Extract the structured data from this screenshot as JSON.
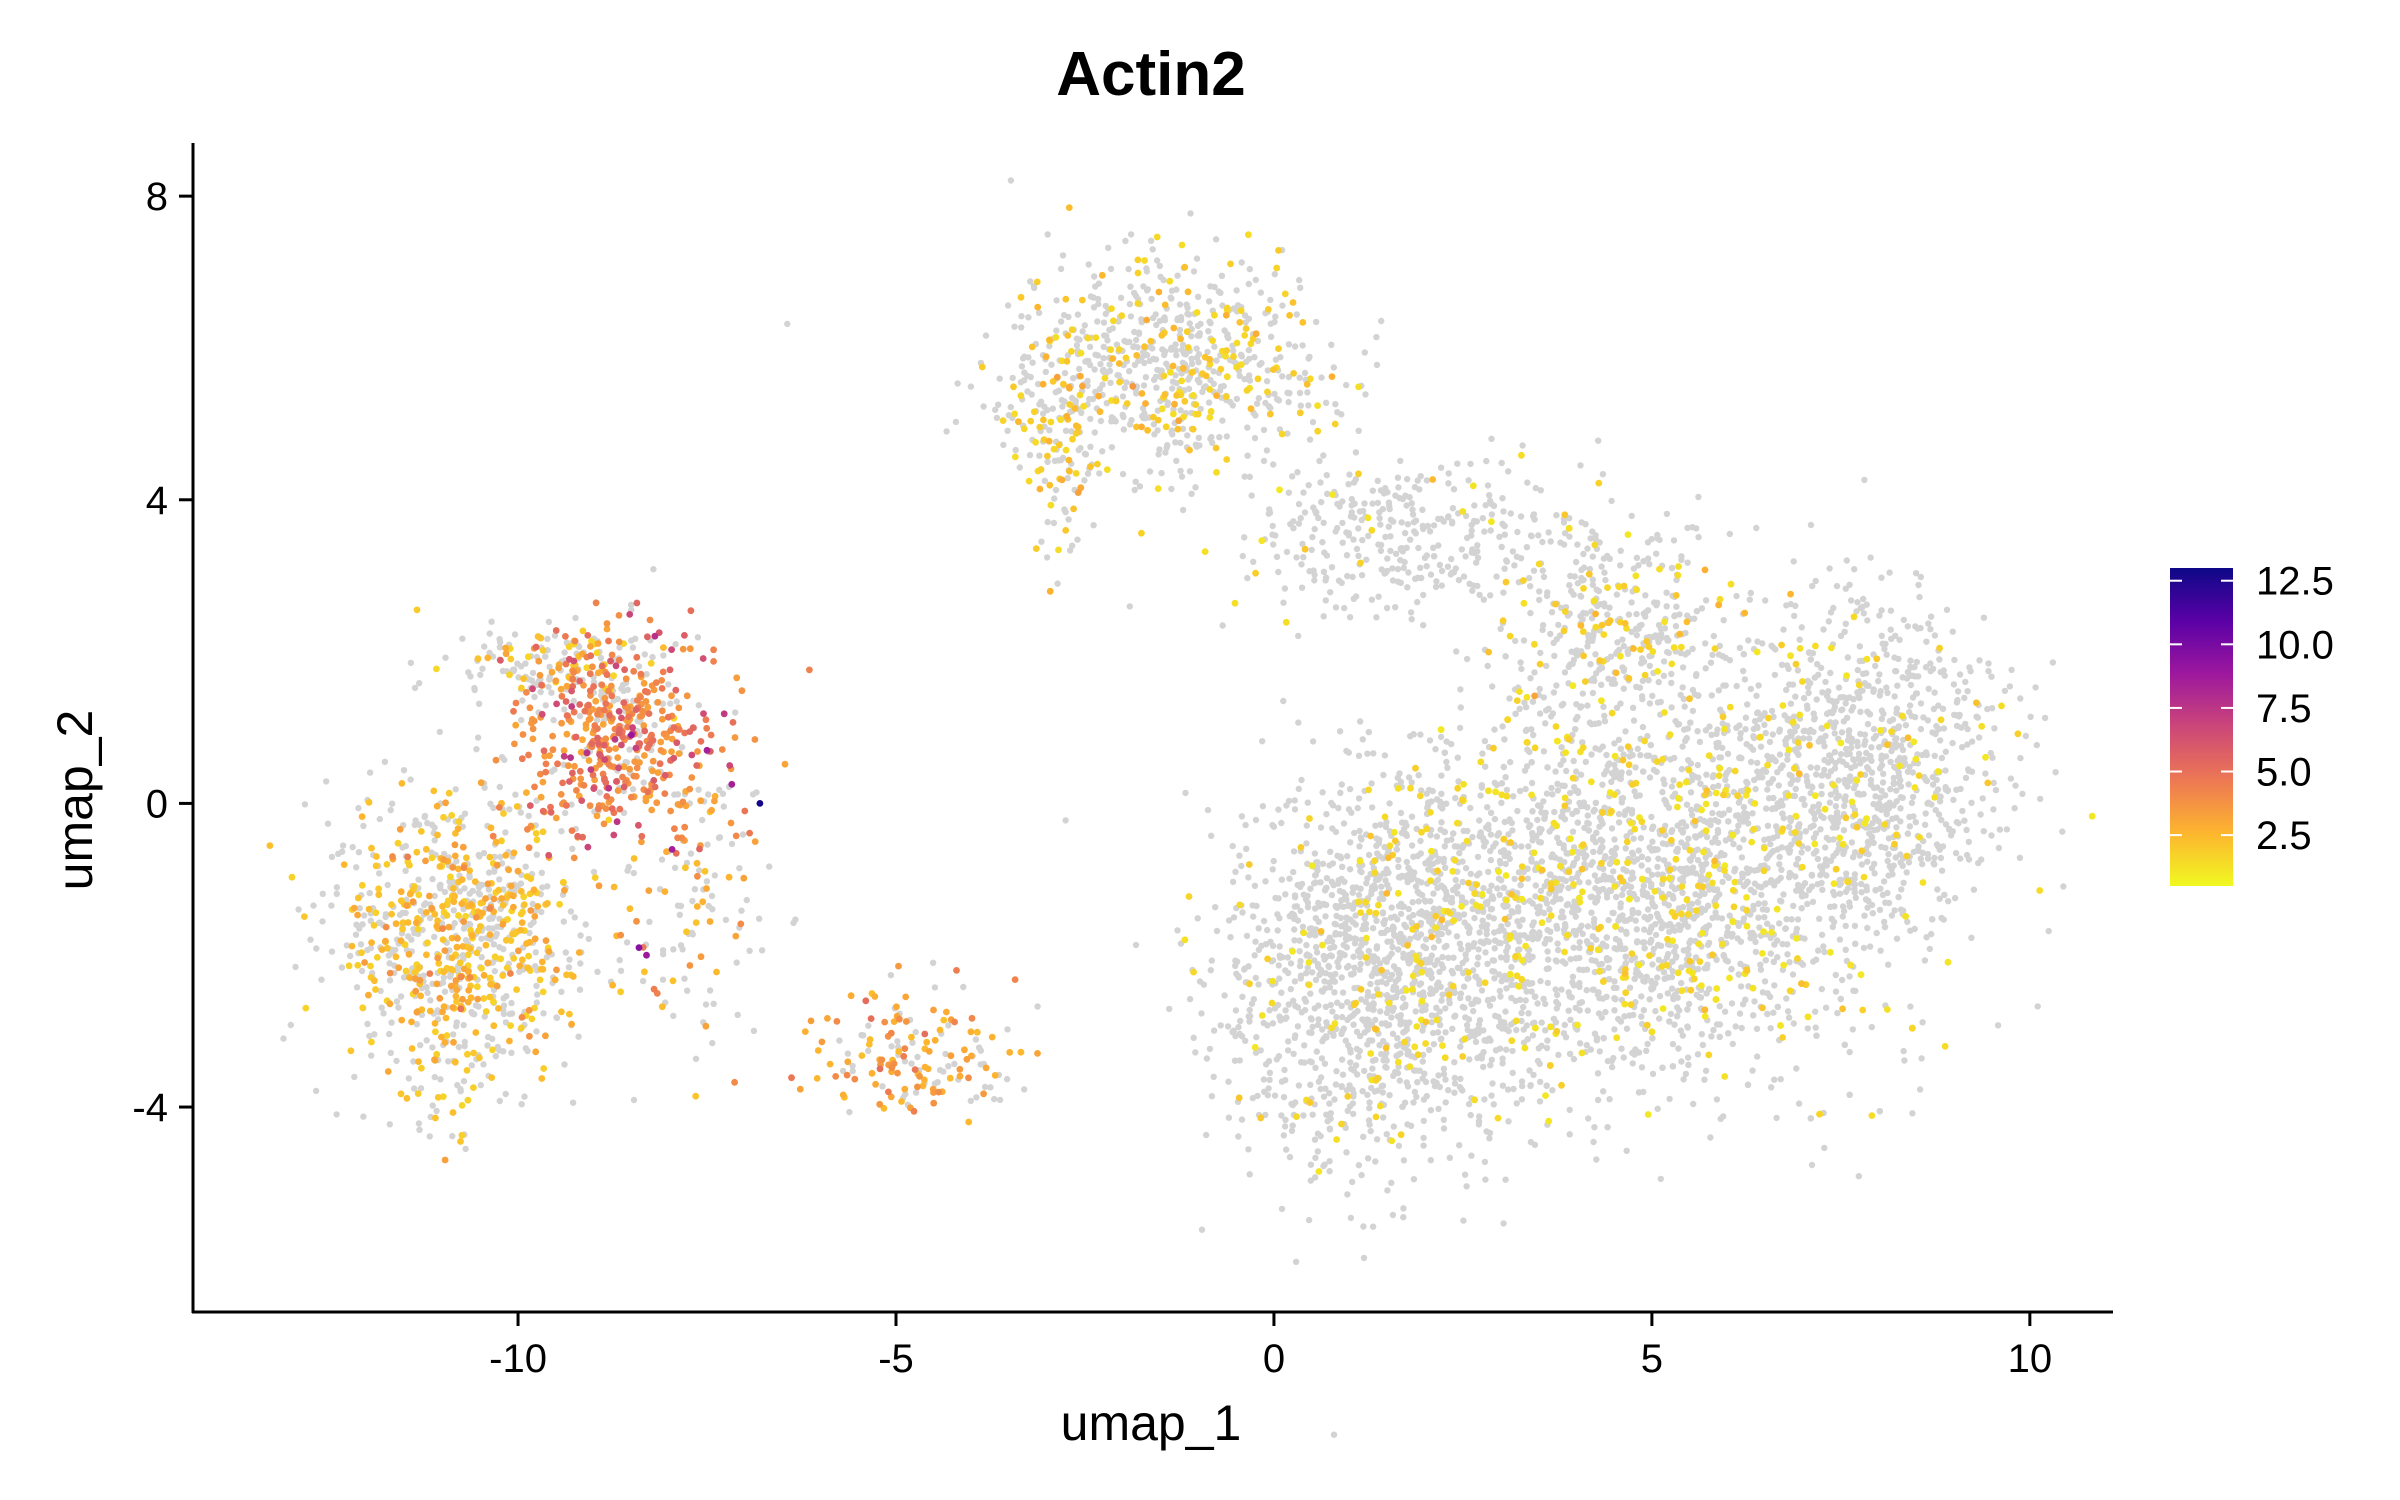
{
  "chart_data": {
    "type": "scatter",
    "title": "Actin2",
    "xlabel": "umap_1",
    "ylabel": "umap_2",
    "xlim": [
      -14.3,
      11.1
    ],
    "ylim": [
      -6.7,
      8.7
    ],
    "x_ticks": [
      -10,
      -5,
      0,
      5,
      10
    ],
    "x_tick_labels": [
      "-10",
      "-5",
      "0",
      "5",
      "10"
    ],
    "y_ticks": [
      -4,
      0,
      4,
      8
    ],
    "y_tick_labels": [
      "-4",
      "0",
      "4",
      "8"
    ],
    "grid": false,
    "legend": {
      "position": "right",
      "type": "colorbar",
      "range": [
        0.5,
        13
      ],
      "ticks": [
        2.5,
        5.0,
        7.5,
        10.0,
        12.5
      ],
      "tick_labels": [
        "2.5",
        "5.0",
        "7.5",
        "10.0",
        "12.5"
      ]
    },
    "colors": {
      "zero_expression": "#d3d3d3",
      "low": "#f0f921",
      "mid": "#e16462",
      "high": "#0d0887",
      "palette": [
        "#f0f921",
        "#fdb42f",
        "#ed7953",
        "#cc4778",
        "#9c179e",
        "#5c01a6",
        "#0d0887"
      ]
    },
    "clusters": [
      {
        "center": [
          -10.8,
          -1.8
        ],
        "spread": [
          1.1,
          1.3
        ],
        "n_cells": 900,
        "expressing_fraction": 0.45,
        "mean_expression": 1.6
      },
      {
        "center": [
          -8.7,
          0.9
        ],
        "spread": [
          0.9,
          0.9
        ],
        "n_cells": 500,
        "expressing_fraction": 0.8,
        "mean_expression": 3.0
      },
      {
        "center": [
          -9.5,
          1.8
        ],
        "spread": [
          0.9,
          0.4
        ],
        "n_cells": 150,
        "expressing_fraction": 0.3,
        "mean_expression": 1.5
      },
      {
        "center": [
          -7.7,
          -1.3
        ],
        "spread": [
          0.7,
          1.5
        ],
        "n_cells": 120,
        "expressing_fraction": 0.4,
        "mean_expression": 2.0
      },
      {
        "center": [
          -4.8,
          -3.3
        ],
        "spread": [
          0.9,
          0.6
        ],
        "n_cells": 160,
        "expressing_fraction": 0.55,
        "mean_expression": 2.2
      },
      {
        "center": [
          -1.4,
          5.8
        ],
        "spread": [
          1.4,
          0.9
        ],
        "n_cells": 700,
        "expressing_fraction": 0.22,
        "mean_expression": 1.3
      },
      {
        "center": [
          -2.9,
          4.8
        ],
        "spread": [
          0.4,
          0.9
        ],
        "n_cells": 120,
        "expressing_fraction": 0.4,
        "mean_expression": 1.3
      },
      {
        "center": [
          1.8,
          3.5
        ],
        "spread": [
          1.6,
          0.7
        ],
        "n_cells": 350,
        "expressing_fraction": 0.05,
        "mean_expression": 1.0
      },
      {
        "center": [
          4.6,
          2.3
        ],
        "spread": [
          1.0,
          1.0
        ],
        "n_cells": 400,
        "expressing_fraction": 0.2,
        "mean_expression": 1.2
      },
      {
        "center": [
          1.4,
          -2.2
        ],
        "spread": [
          1.4,
          1.7
        ],
        "n_cells": 1400,
        "expressing_fraction": 0.08,
        "mean_expression": 1.0
      },
      {
        "center": [
          4.8,
          -1.2
        ],
        "spread": [
          2.1,
          1.7
        ],
        "n_cells": 2300,
        "expressing_fraction": 0.15,
        "mean_expression": 1.0
      },
      {
        "center": [
          7.8,
          0.5
        ],
        "spread": [
          1.2,
          1.4
        ],
        "n_cells": 900,
        "expressing_fraction": 0.06,
        "mean_expression": 1.0
      }
    ],
    "high_points": [
      {
        "x": -6.8,
        "y": 0.0,
        "value": 12.8
      },
      {
        "x": -8.4,
        "y": -1.9,
        "value": 9.5
      },
      {
        "x": -8.3,
        "y": -2.0,
        "value": 8.8
      },
      {
        "x": -8.5,
        "y": 0.9,
        "value": 9.0
      },
      {
        "x": -7.5,
        "y": 0.7,
        "value": 8.5
      },
      {
        "x": -8.8,
        "y": 0.2,
        "value": 7.5
      },
      {
        "x": -7.2,
        "y": 0.5,
        "value": 6.8
      },
      {
        "x": -7.9,
        "y": 0.8,
        "value": 6.0
      },
      {
        "x": -7.6,
        "y": -0.6,
        "value": 5.5
      },
      {
        "x": -5.4,
        "y": -2.6,
        "value": 5.2
      },
      {
        "x": -4.2,
        "y": -2.2,
        "value": 4.5
      },
      {
        "x": -5.1,
        "y": -3.8,
        "value": 4.6
      },
      {
        "x": -7.0,
        "y": -0.1,
        "value": 4.8
      }
    ]
  }
}
